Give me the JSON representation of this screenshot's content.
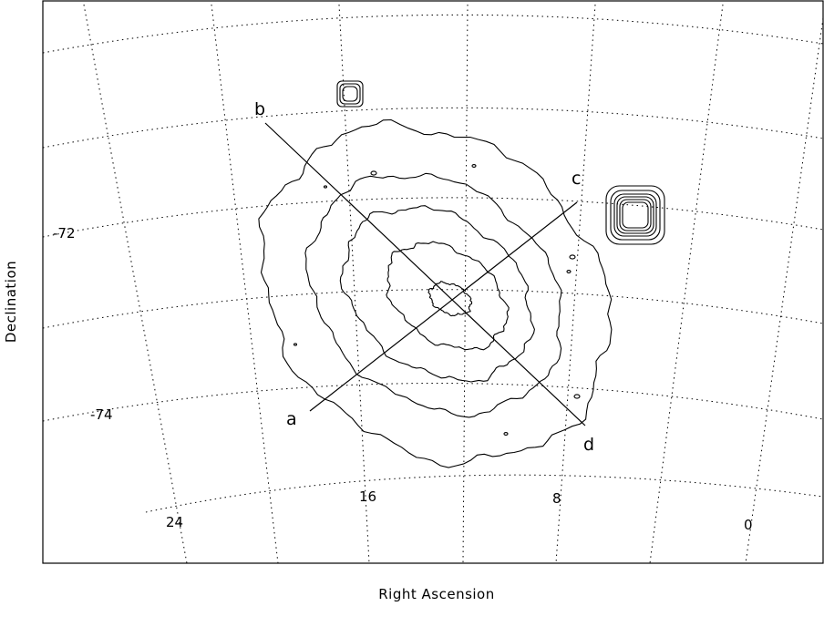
{
  "chart_data": {
    "type": "contour",
    "title": "",
    "xlabel": "Right Ascension",
    "ylabel": "Declination",
    "projection": "sky",
    "x_ticks": [
      "24",
      "16",
      "8",
      "0"
    ],
    "y_ticks": [
      "-72",
      "-74"
    ],
    "cut_labels": [
      "a",
      "b",
      "c",
      "d"
    ],
    "cuts": [
      {
        "from": "a",
        "to": "c"
      },
      {
        "from": "b",
        "to": "d"
      }
    ],
    "contour_levels": 5,
    "grid": true,
    "grid_style": "dotted",
    "compact_sources": 2
  }
}
